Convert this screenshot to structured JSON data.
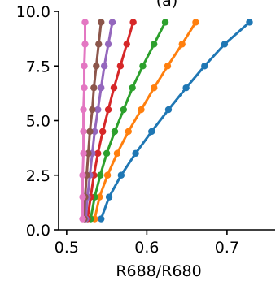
{
  "chart_data": {
    "type": "line",
    "title": "(a)",
    "xlabel": "R688/R680",
    "ylabel": "",
    "xlim": [
      0.49,
      0.76
    ],
    "ylim": [
      0,
      10
    ],
    "xticks": [
      0.5,
      0.6,
      0.7
    ],
    "yticks": [
      0.0,
      2.5,
      5.0,
      7.5,
      10.0
    ],
    "xtick_labels": [
      "0.5",
      "0.6",
      "0.7"
    ],
    "ytick_labels": [
      "0.0",
      "2.5",
      "5.0",
      "7.5",
      "10.0"
    ],
    "grid": false,
    "legend": "none",
    "y_values": [
      0.5,
      1.5,
      2.5,
      3.5,
      4.5,
      5.5,
      6.5,
      7.5,
      8.5,
      9.5
    ],
    "series": [
      {
        "color": "#1f77b4",
        "x": [
          0.543,
          0.553,
          0.568,
          0.586,
          0.606,
          0.627,
          0.649,
          0.672,
          0.697,
          0.728
        ]
      },
      {
        "color": "#ff7f0e",
        "x": [
          0.535,
          0.541,
          0.551,
          0.563,
          0.577,
          0.593,
          0.609,
          0.626,
          0.644,
          0.661
        ]
      },
      {
        "color": "#2ca02c",
        "x": [
          0.53,
          0.535,
          0.542,
          0.55,
          0.56,
          0.571,
          0.582,
          0.595,
          0.609,
          0.623
        ]
      },
      {
        "color": "#d62728",
        "x": [
          0.526,
          0.53,
          0.534,
          0.539,
          0.545,
          0.552,
          0.559,
          0.567,
          0.575,
          0.583
        ]
      },
      {
        "color": "#9467bd",
        "x": [
          0.524,
          0.526,
          0.529,
          0.532,
          0.535,
          0.539,
          0.543,
          0.547,
          0.552,
          0.557
        ]
      },
      {
        "color": "#8c564b",
        "x": [
          0.522,
          0.523,
          0.525,
          0.527,
          0.529,
          0.532,
          0.534,
          0.537,
          0.54,
          0.543
        ]
      },
      {
        "color": "#e377c2",
        "x": [
          0.52,
          0.52,
          0.52,
          0.521,
          0.521,
          0.521,
          0.522,
          0.522,
          0.523,
          0.523
        ]
      }
    ]
  }
}
